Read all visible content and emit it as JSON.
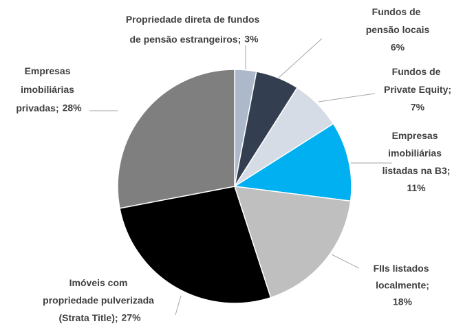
{
  "chart_data": {
    "type": "pie",
    "categories": [
      "Propriedade direta de fundos de pensão estrangeiros;",
      "Fundos de pensão locais",
      "Fundos de Private Equity;",
      "Empresas imobiliárias listadas na B3;",
      "FIIs listados localmente;",
      "Imóveis com propriedade pulverizada (Strata Title);",
      "Empresas imobiliárias privadas;"
    ],
    "values": [
      3,
      6,
      7,
      11,
      18,
      27,
      28
    ],
    "value_labels": [
      "3%",
      "6%",
      "7%",
      "11%",
      "18%",
      "27%",
      "28%"
    ],
    "colors": [
      "#adb9ca",
      "#333f50",
      "#d6dce5",
      "#00b0f0",
      "#bfbfbf",
      "#000000",
      "#7f7f7f"
    ]
  }
}
